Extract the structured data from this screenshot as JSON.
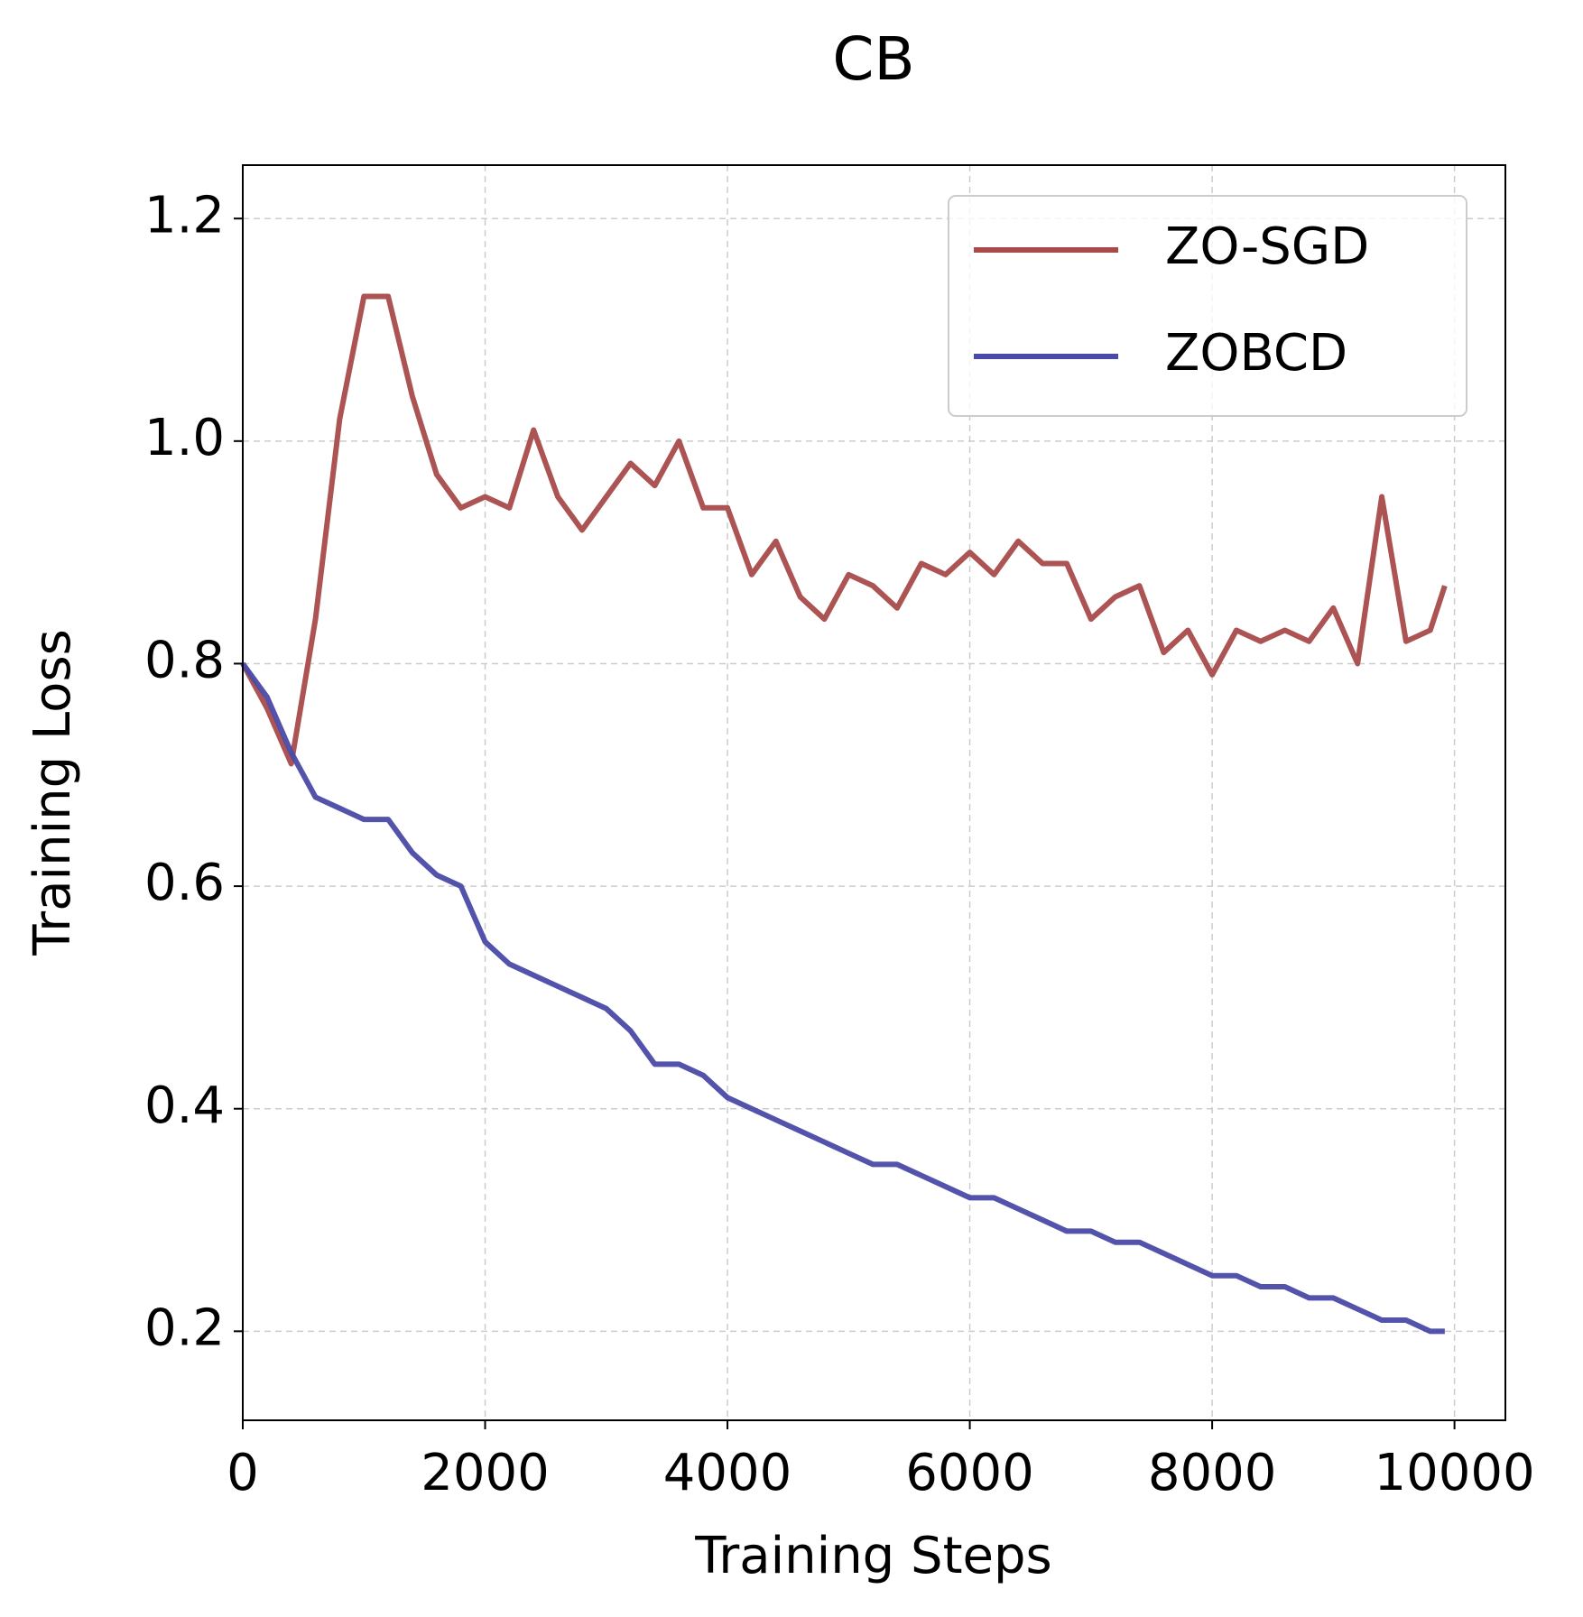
{
  "chart_data": {
    "type": "line",
    "title": "CB",
    "x_label": "Training Steps",
    "y_label": "Training Loss",
    "x": [
      0,
      200,
      400,
      600,
      800,
      1000,
      1200,
      1400,
      1600,
      1800,
      2000,
      2200,
      2400,
      2600,
      2800,
      3000,
      3200,
      3400,
      3600,
      3800,
      4000,
      4200,
      4400,
      4600,
      4800,
      5000,
      5200,
      5400,
      5600,
      5800,
      6000,
      6200,
      6400,
      6600,
      6800,
      7000,
      7200,
      7400,
      7600,
      7800,
      8000,
      8200,
      8400,
      8600,
      8800,
      9000,
      9200,
      9400,
      9600,
      9800,
      9920
    ],
    "series": [
      {
        "name": "ZO-SGD",
        "color": "#a84a4a",
        "values": [
          0.8,
          0.76,
          0.71,
          0.84,
          1.02,
          1.13,
          1.13,
          1.04,
          0.97,
          0.94,
          0.95,
          0.94,
          1.01,
          0.95,
          0.92,
          0.95,
          0.98,
          0.96,
          1.0,
          0.94,
          0.94,
          0.88,
          0.91,
          0.86,
          0.84,
          0.88,
          0.87,
          0.85,
          0.89,
          0.88,
          0.9,
          0.88,
          0.91,
          0.89,
          0.89,
          0.84,
          0.86,
          0.87,
          0.81,
          0.83,
          0.79,
          0.83,
          0.82,
          0.83,
          0.82,
          0.85,
          0.8,
          0.95,
          0.82,
          0.83,
          0.87
        ]
      },
      {
        "name": "ZOBCD",
        "color": "#4a4aa8",
        "values": [
          0.8,
          0.77,
          0.72,
          0.68,
          0.67,
          0.66,
          0.66,
          0.63,
          0.61,
          0.6,
          0.55,
          0.53,
          0.52,
          0.51,
          0.5,
          0.49,
          0.47,
          0.44,
          0.44,
          0.43,
          0.41,
          0.4,
          0.39,
          0.38,
          0.37,
          0.36,
          0.35,
          0.35,
          0.34,
          0.33,
          0.32,
          0.32,
          0.31,
          0.3,
          0.29,
          0.29,
          0.28,
          0.28,
          0.27,
          0.26,
          0.25,
          0.25,
          0.24,
          0.24,
          0.23,
          0.23,
          0.22,
          0.21,
          0.21,
          0.2,
          0.2
        ]
      }
    ],
    "xlim": [
      0,
      10420
    ],
    "xticks": [
      0,
      2000,
      4000,
      6000,
      8000,
      10000
    ],
    "ylim": [
      0.12,
      1.248
    ],
    "yticks": [
      0.2,
      0.4,
      0.6,
      0.8,
      {
        "value": 1,
        "label": "1.0"
      },
      1.2
    ],
    "grid": true,
    "legend": "upper right"
  }
}
